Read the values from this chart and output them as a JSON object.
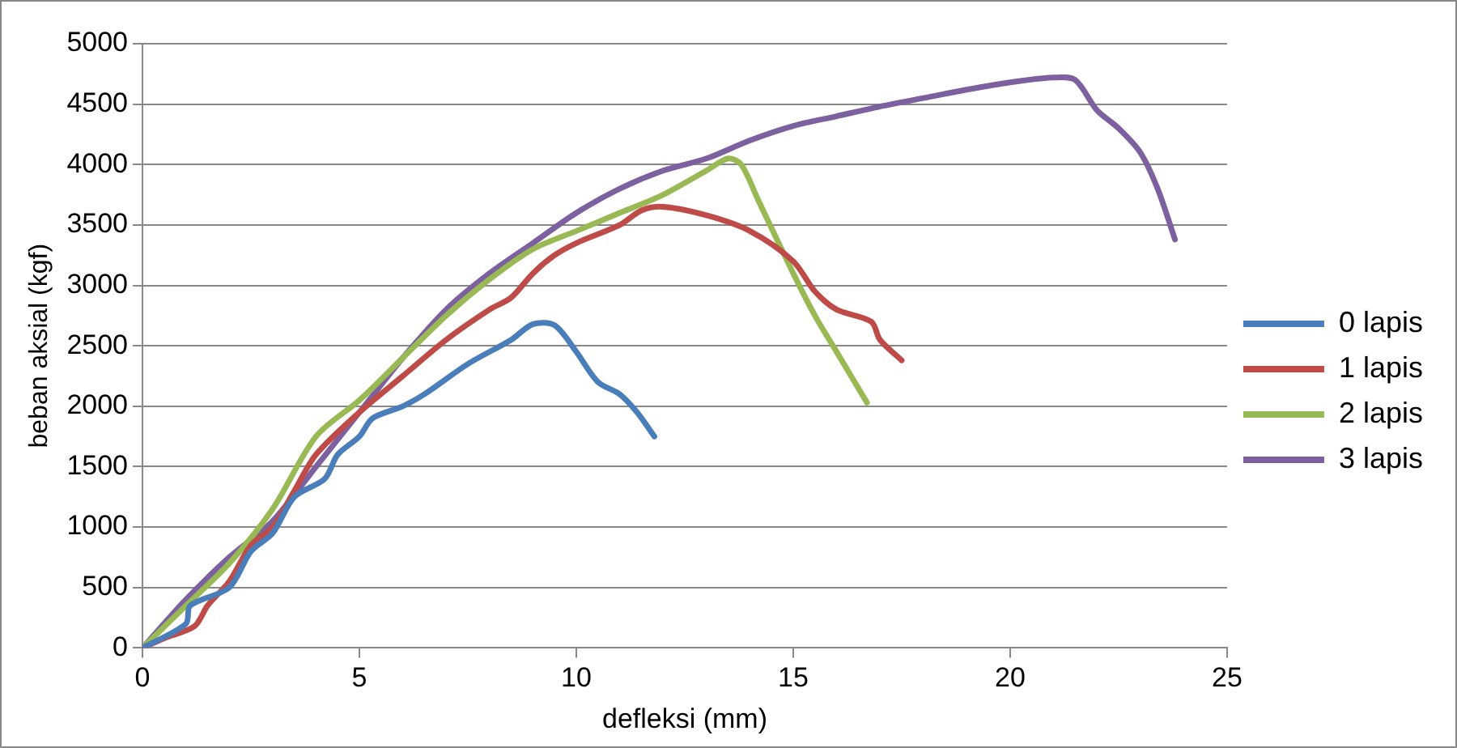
{
  "chart_data": {
    "type": "line",
    "xlabel": "defleksi (mm)",
    "ylabel": "beban aksial (kgf)",
    "xlim": [
      0,
      25
    ],
    "xticks": [
      0,
      5,
      10,
      15,
      20,
      25
    ],
    "ylim": [
      0,
      5000
    ],
    "yticks": [
      0,
      500,
      1000,
      1500,
      2000,
      2500,
      3000,
      3500,
      4000,
      4500,
      5000
    ],
    "grid": "y",
    "legend": "right",
    "marker": "none",
    "line_style": "solid",
    "series": [
      {
        "name": "0 lapis",
        "color": "#4a7ebb",
        "x": [
          0,
          1,
          1.1,
          2,
          2.5,
          3,
          3.5,
          4.2,
          4.5,
          5,
          5.3,
          6,
          6.5,
          7.5,
          8.5,
          9,
          9.5,
          10,
          10.5,
          11,
          11.4,
          11.8
        ],
        "values": [
          0,
          200,
          350,
          500,
          800,
          950,
          1250,
          1400,
          1600,
          1750,
          1900,
          2000,
          2100,
          2350,
          2550,
          2680,
          2670,
          2450,
          2200,
          2100,
          1950,
          1750
        ]
      },
      {
        "name": "1 lapis",
        "color": "#be4b48",
        "x": [
          0,
          0.5,
          1.2,
          1.5,
          2,
          2.5,
          3,
          3.5,
          4,
          5,
          6,
          7,
          8,
          8.5,
          9,
          9.5,
          10,
          11,
          11.5,
          12,
          13,
          14,
          15,
          15.5,
          16,
          16.8,
          17,
          17.5
        ],
        "values": [
          0,
          80,
          180,
          350,
          550,
          850,
          1000,
          1300,
          1600,
          1950,
          2250,
          2550,
          2800,
          2900,
          3100,
          3250,
          3350,
          3500,
          3620,
          3650,
          3580,
          3450,
          3200,
          2950,
          2800,
          2700,
          2550,
          2380
        ]
      },
      {
        "name": "2 lapis",
        "color": "#98b954",
        "x": [
          0,
          1,
          2,
          3,
          4,
          5,
          6,
          7,
          8,
          9,
          10,
          11,
          12,
          13,
          13.5,
          13.8,
          14.2,
          15,
          15.5,
          16,
          16.7
        ],
        "values": [
          0,
          350,
          700,
          1150,
          1750,
          2050,
          2400,
          2750,
          3050,
          3300,
          3450,
          3600,
          3750,
          3950,
          4050,
          4000,
          3700,
          3100,
          2750,
          2450,
          2030
        ]
      },
      {
        "name": "3 lapis",
        "color": "#7d60a0",
        "x": [
          0,
          1,
          2,
          3,
          4,
          5,
          6,
          7,
          8,
          9,
          10,
          11,
          12,
          13,
          14,
          15,
          16,
          17,
          18,
          19,
          20,
          21,
          21.5,
          22,
          22.5,
          23,
          23.4,
          23.8
        ],
        "values": [
          0,
          400,
          750,
          1050,
          1500,
          1950,
          2400,
          2800,
          3100,
          3350,
          3600,
          3800,
          3950,
          4050,
          4200,
          4320,
          4400,
          4480,
          4550,
          4620,
          4680,
          4720,
          4700,
          4450,
          4300,
          4100,
          3800,
          3380
        ]
      }
    ]
  }
}
